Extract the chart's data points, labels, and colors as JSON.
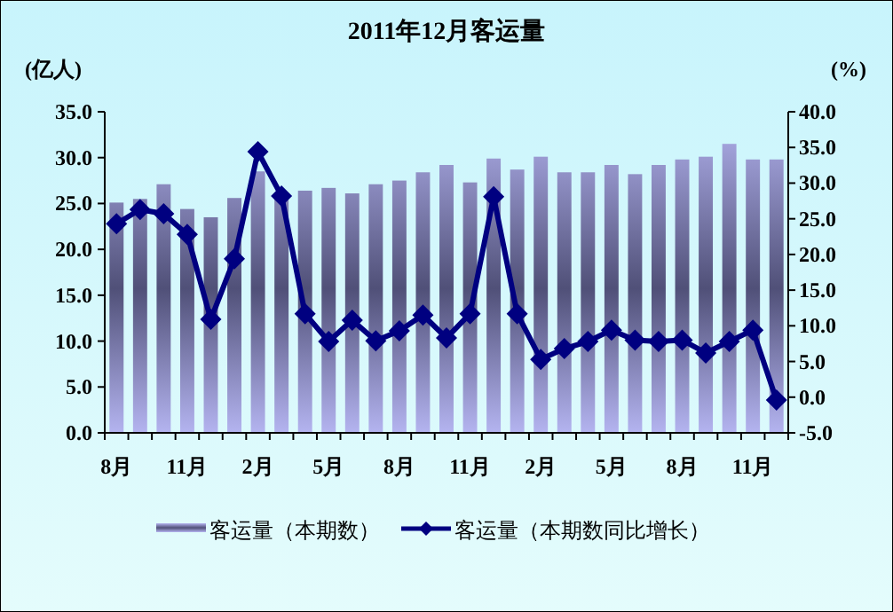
{
  "chart_data": {
    "type": "bar",
    "title": "2011年12月客运量",
    "ylabel": "(亿人)",
    "y2label": "(%)",
    "categories": [
      "8月",
      null,
      null,
      "11月",
      null,
      null,
      "2月",
      null,
      null,
      "5月",
      null,
      null,
      "8月",
      null,
      null,
      "11月",
      null,
      null,
      "2月",
      null,
      null,
      "5月",
      null,
      null,
      "8月",
      null,
      null,
      "11月",
      null
    ],
    "series": [
      {
        "name": "客运量（本期数）",
        "color": "#b4b4f0",
        "values": [
          25.1,
          25.5,
          27.1,
          24.4,
          23.5,
          25.6,
          28.5,
          26.0,
          26.4,
          26.7,
          26.1,
          27.1,
          27.5,
          28.4,
          29.2,
          27.3,
          29.9,
          28.7,
          30.1,
          28.4,
          28.4,
          29.2,
          28.2,
          29.2,
          29.8,
          30.1,
          31.5,
          29.8,
          29.8
        ]
      },
      {
        "name": "客运量（本期数同比增长）",
        "type": "line",
        "axis": "y2",
        "color": "#000080",
        "values": [
          24.3,
          26.3,
          25.7,
          22.8,
          10.9,
          19.4,
          34.4,
          28.2,
          11.7,
          7.8,
          10.8,
          7.9,
          9.3,
          11.5,
          8.3,
          11.7,
          28.1,
          11.7,
          5.3,
          6.8,
          7.8,
          9.4,
          8.0,
          7.8,
          8.0,
          6.2,
          7.8,
          9.4,
          -0.4
        ]
      }
    ],
    "ylim": [
      0,
      35
    ],
    "yticks": [
      {
        "value": 0,
        "label": "0.0"
      },
      {
        "value": 5,
        "label": "5.0"
      },
      {
        "value": 10,
        "label": "10.0"
      },
      {
        "value": 15,
        "label": "15.0"
      },
      {
        "value": 20,
        "label": "20.0"
      },
      {
        "value": 25,
        "label": "25.0"
      },
      {
        "value": 30,
        "label": "30.0"
      },
      {
        "value": 35,
        "label": "35.0"
      }
    ],
    "y2lim": [
      -5,
      40
    ],
    "y2ticks": [
      {
        "value": -5,
        "label": "-5.0"
      },
      {
        "value": 0,
        "label": "0.0"
      },
      {
        "value": 5,
        "label": "5.0"
      },
      {
        "value": 10,
        "label": "10.0"
      },
      {
        "value": 15,
        "label": "15.0"
      },
      {
        "value": 20,
        "label": "20.0"
      },
      {
        "value": 25,
        "label": "25.0"
      },
      {
        "value": 30,
        "label": "30.0"
      },
      {
        "value": 35,
        "label": "35.0"
      },
      {
        "value": 40,
        "label": "40.0"
      }
    ],
    "marker": "diamond",
    "line_style": "solid",
    "legend": "bottom"
  }
}
